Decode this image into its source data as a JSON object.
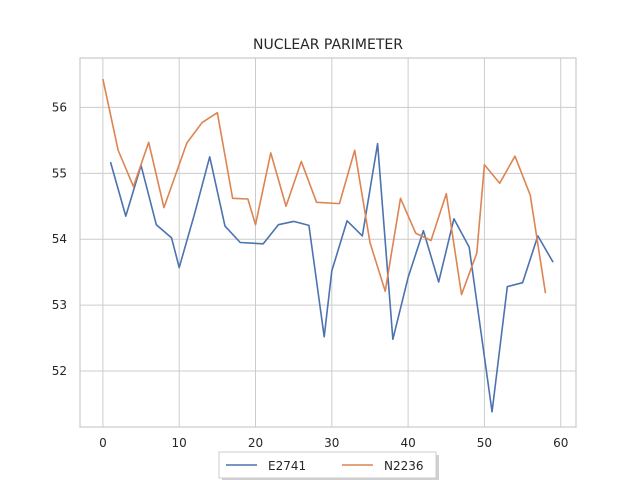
{
  "chart_data": {
    "type": "line",
    "title": "NUCLEAR PARIMETER",
    "xlabel": "",
    "ylabel": "",
    "xlim": [
      -3,
      62
    ],
    "ylim": [
      51.15,
      56.75
    ],
    "xticks": [
      0,
      10,
      20,
      30,
      40,
      50,
      60
    ],
    "yticks": [
      52,
      53,
      54,
      55,
      56
    ],
    "grid": true,
    "legend_position": "bottom-center",
    "series": [
      {
        "name": "E2741",
        "color": "#4c72b0",
        "x": [
          1,
          3,
          5,
          7,
          9,
          10,
          12,
          14,
          16,
          18,
          21,
          23,
          25,
          27,
          29,
          30,
          32,
          34,
          36,
          38,
          40,
          42,
          44,
          46,
          48,
          51,
          53,
          55,
          57,
          59
        ],
        "y": [
          55.17,
          54.35,
          55.12,
          54.22,
          54.02,
          53.57,
          54.38,
          55.25,
          54.2,
          53.95,
          53.93,
          54.22,
          54.27,
          54.21,
          52.52,
          53.52,
          54.28,
          54.05,
          55.45,
          52.48,
          53.42,
          54.13,
          53.35,
          54.31,
          53.88,
          51.38,
          53.28,
          53.34,
          54.05,
          53.65
        ]
      },
      {
        "name": "N2236",
        "color": "#dd8452",
        "x": [
          0,
          2,
          4,
          6,
          8,
          11,
          13,
          15,
          17,
          19,
          20,
          22,
          24,
          26,
          28,
          31,
          33,
          35,
          37,
          39,
          41,
          43,
          45,
          47,
          49,
          50,
          52,
          54,
          56,
          58
        ],
        "y": [
          56.43,
          55.35,
          54.8,
          55.47,
          54.48,
          55.46,
          55.77,
          55.92,
          54.62,
          54.61,
          54.22,
          55.31,
          54.5,
          55.18,
          54.56,
          54.54,
          55.35,
          53.95,
          53.21,
          54.62,
          54.09,
          53.98,
          54.69,
          53.16,
          53.79,
          55.13,
          54.85,
          55.26,
          54.67,
          53.18
        ]
      }
    ]
  }
}
